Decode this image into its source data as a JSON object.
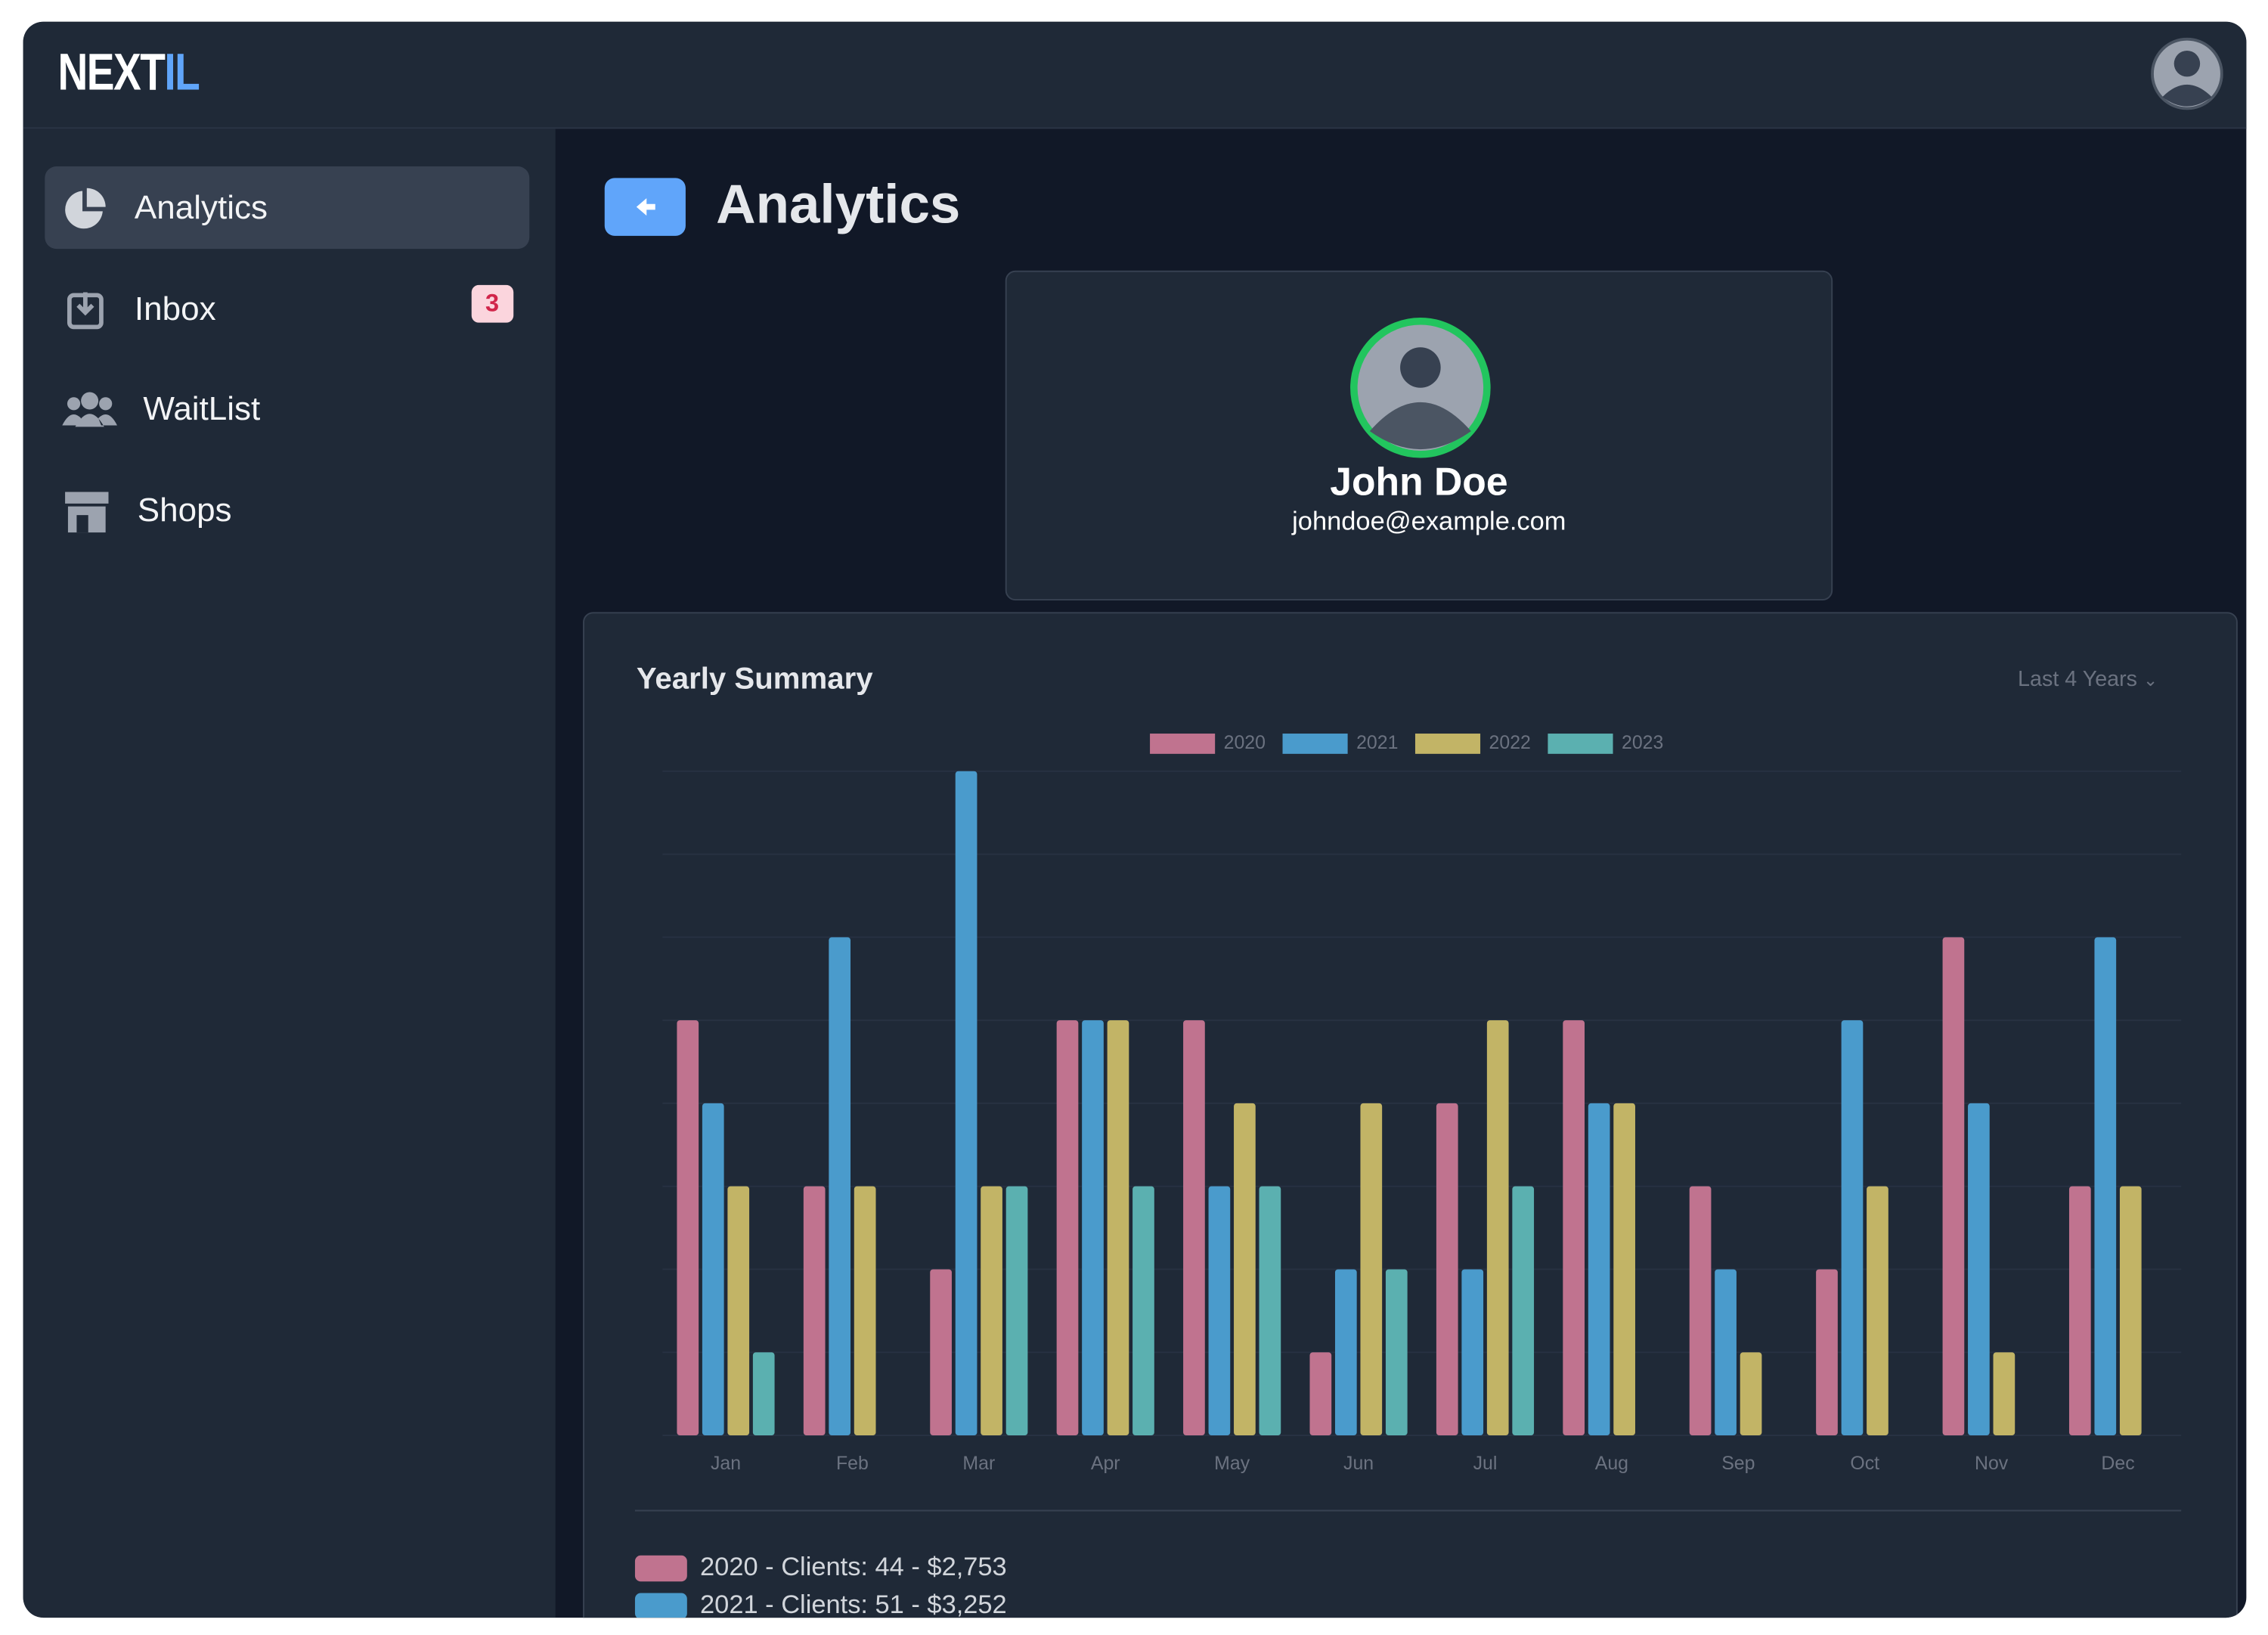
{
  "header": {
    "brand_main": "NEXT",
    "brand_accent": "IL"
  },
  "nav": [
    {
      "label": "Analytics"
    },
    {
      "label": "Inbox",
      "badge": "3"
    },
    {
      "label": "WaitList"
    },
    {
      "label": "Shops"
    }
  ],
  "page": {
    "title": "Analytics"
  },
  "profile": {
    "name": "John Doe",
    "email": "johndoe@example.com"
  },
  "summary_card": {
    "title": "Yearly Summary",
    "range": "Last 4 Years",
    "rows": [
      "2020 - Clients: 44 - $2,753",
      "2021 - Clients: 51 - $3,252"
    ]
  },
  "chart_data": {
    "type": "bar",
    "categories": [
      "Jan",
      "Feb",
      "Mar",
      "Apr",
      "May",
      "Jun",
      "Jul",
      "Aug",
      "Sep",
      "Oct",
      "Nov",
      "Dec"
    ],
    "series": [
      {
        "name": "2020",
        "color": "#c0738f",
        "values": [
          5,
          3,
          2,
          5,
          5,
          1,
          4,
          5,
          3,
          2,
          6,
          3
        ]
      },
      {
        "name": "2021",
        "color": "#4a9bcc",
        "values": [
          4,
          6,
          8,
          5,
          3,
          2,
          2,
          4,
          2,
          5,
          4,
          6
        ]
      },
      {
        "name": "2022",
        "color": "#c2b466",
        "values": [
          3,
          3,
          3,
          5,
          4,
          4,
          5,
          4,
          1,
          3,
          1,
          3
        ]
      },
      {
        "name": "2023",
        "color": "#5bb0b0",
        "values": [
          1,
          0,
          3,
          3,
          3,
          2,
          3,
          0,
          0,
          0,
          0,
          0
        ]
      }
    ],
    "ylim": [
      0,
      8
    ],
    "grid": true
  }
}
